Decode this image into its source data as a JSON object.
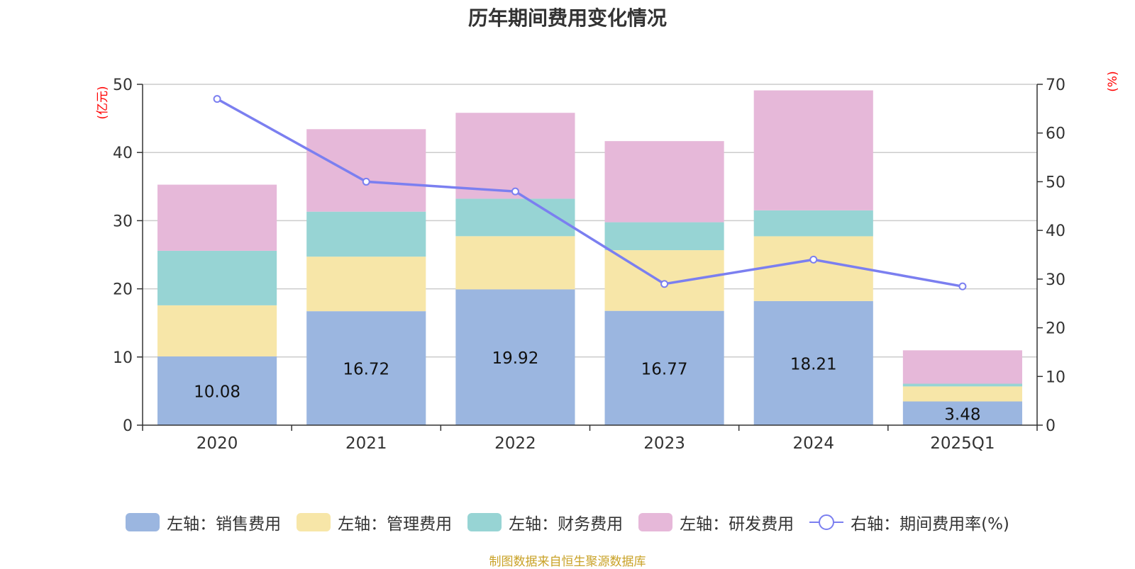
{
  "title": "历年期间费用变化情况",
  "footer": "制图数据来自恒生聚源数据库",
  "chart_data": {
    "type": "bar",
    "stacked": true,
    "categories": [
      "2020",
      "2021",
      "2022",
      "2023",
      "2024",
      "2025Q1"
    ],
    "left_axis": {
      "unit_label": "(亿元)",
      "ylim": [
        0,
        50
      ],
      "ticks": [
        0,
        10,
        20,
        30,
        40,
        50
      ]
    },
    "right_axis": {
      "unit_label": "(%)",
      "ylim": [
        0,
        70
      ],
      "ticks": [
        0,
        10,
        20,
        30,
        40,
        50,
        60,
        70
      ]
    },
    "grid": true,
    "legend_position": "bottom",
    "series": [
      {
        "name": "左轴：销售费用",
        "axis": "left",
        "type": "bar",
        "color": "#9bb6e0",
        "values": [
          10.08,
          16.72,
          19.92,
          16.77,
          18.21,
          3.48
        ],
        "show_labels": true
      },
      {
        "name": "左轴：管理费用",
        "axis": "left",
        "type": "bar",
        "color": "#f7e6a8",
        "values": [
          7.5,
          8.0,
          7.8,
          8.9,
          9.5,
          2.2
        ],
        "show_labels": false
      },
      {
        "name": "左轴：财务费用",
        "axis": "left",
        "type": "bar",
        "color": "#97d4d4",
        "values": [
          8.0,
          6.6,
          5.5,
          4.1,
          3.8,
          0.4
        ],
        "show_labels": false
      },
      {
        "name": "左轴：研发费用",
        "axis": "left",
        "type": "bar",
        "color": "#e6b8d9",
        "values": [
          9.7,
          12.1,
          12.6,
          11.9,
          17.6,
          4.9
        ],
        "show_labels": false
      },
      {
        "name": "右轴：期间费用率(%)",
        "axis": "right",
        "type": "line",
        "color": "#7b7ff0",
        "values": [
          67.0,
          50.0,
          48.0,
          29.0,
          34.0,
          28.5
        ],
        "show_labels": false
      }
    ]
  }
}
